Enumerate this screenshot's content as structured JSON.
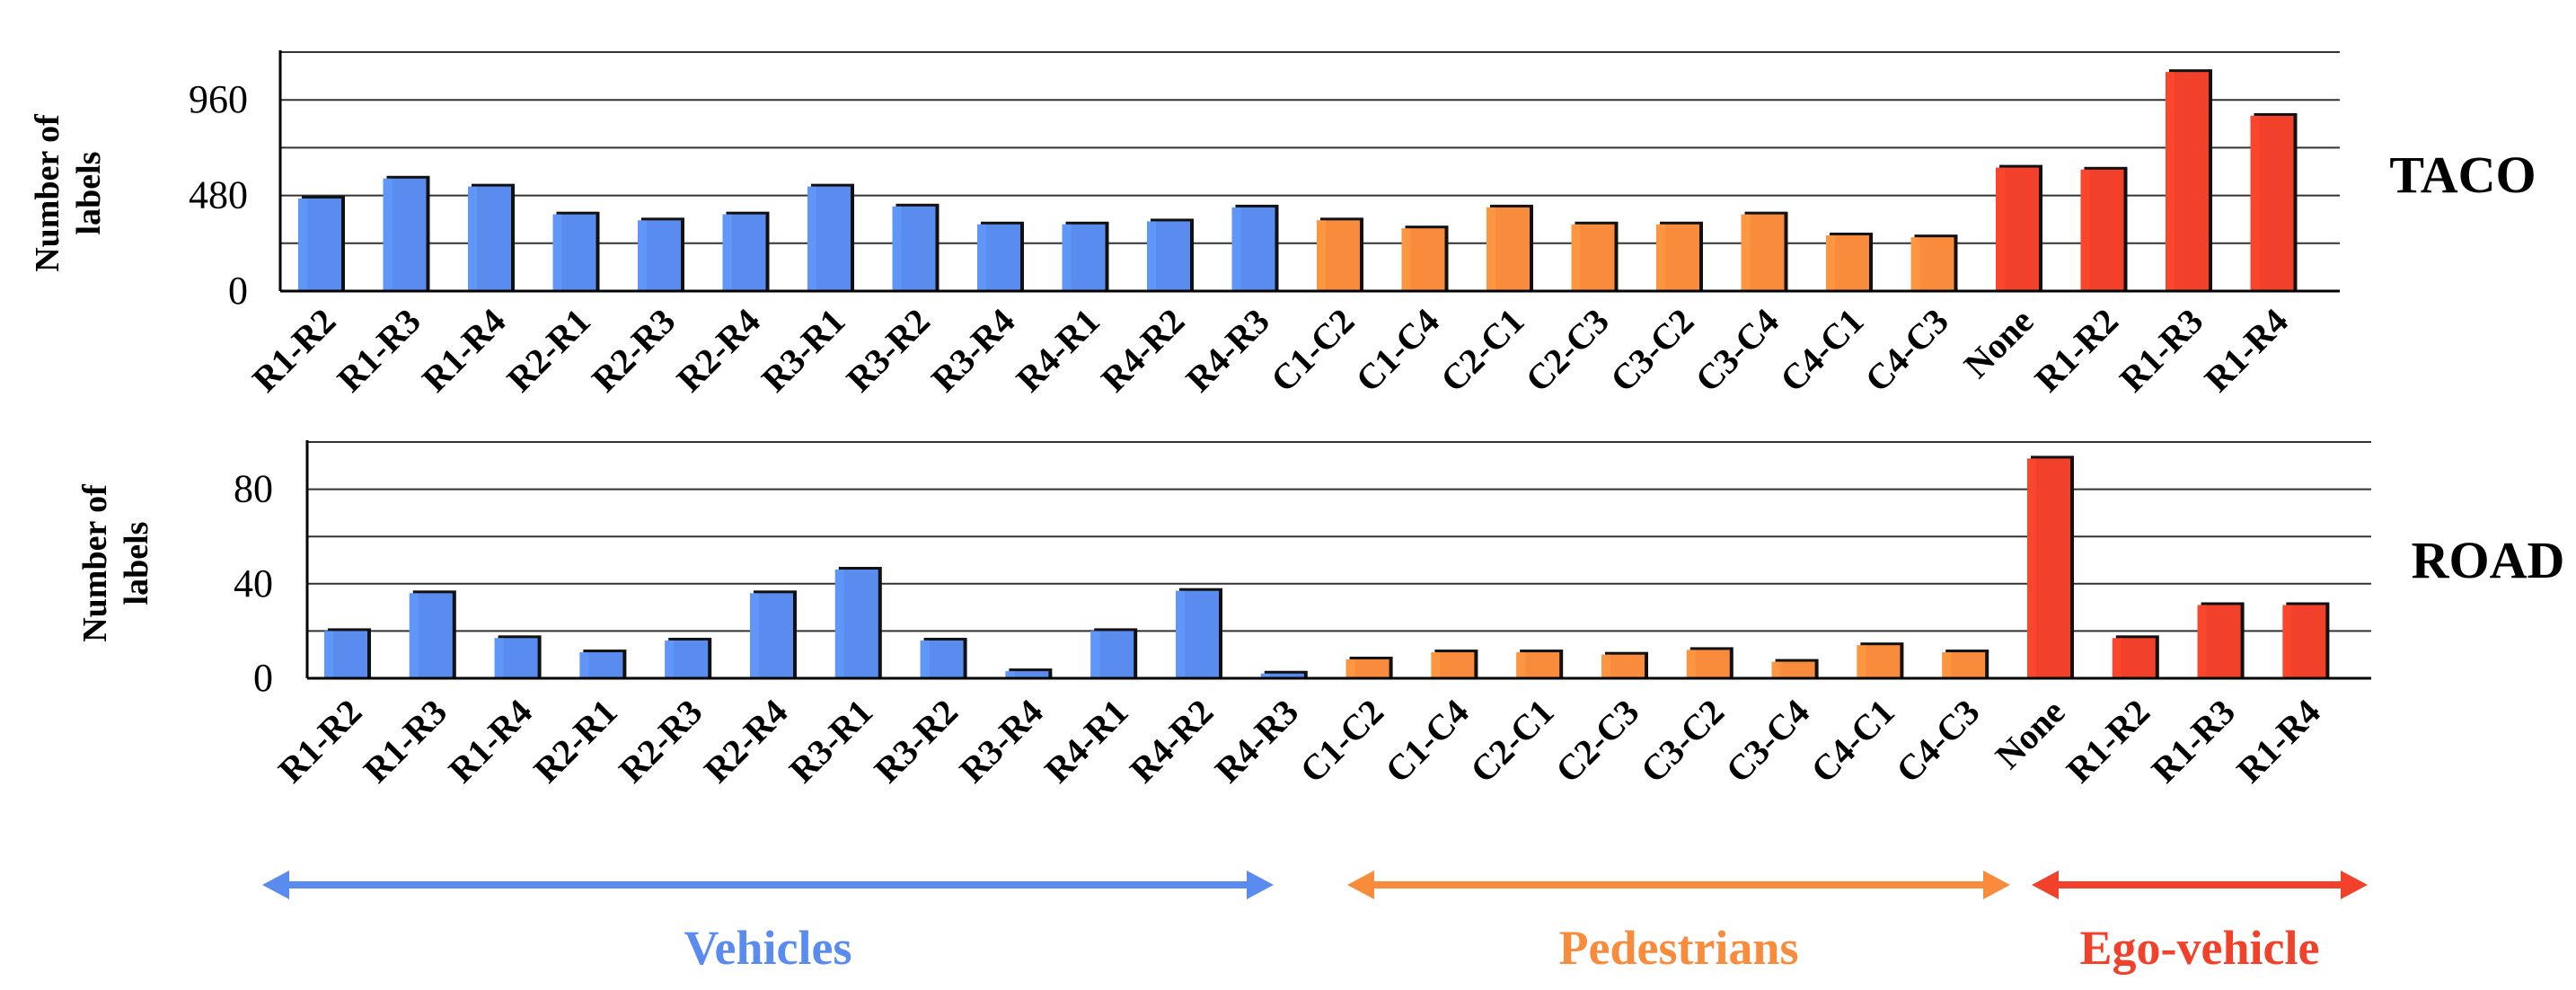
{
  "chart_data": [
    {
      "type": "bar",
      "side_label": "TACO",
      "ylabel": "Number of labels",
      "ylim": [
        0,
        1200
      ],
      "yticks": [
        0,
        480,
        960
      ],
      "categories": [
        "R1-R2",
        "R1-R3",
        "R1-R4",
        "R2-R1",
        "R2-R3",
        "R2-R4",
        "R3-R1",
        "R3-R2",
        "R3-R4",
        "R4-R1",
        "R4-R2",
        "R4-R3",
        "C1-C2",
        "C1-C4",
        "C2-C1",
        "C2-C3",
        "C3-C2",
        "C3-C4",
        "C4-C1",
        "C4-C3",
        "None",
        "R1-R2",
        "R1-R3",
        "R1-R4"
      ],
      "values": [
        465,
        565,
        525,
        385,
        355,
        385,
        525,
        425,
        335,
        335,
        350,
        420,
        355,
        315,
        420,
        335,
        335,
        385,
        280,
        270,
        620,
        610,
        1100,
        880
      ],
      "groups": [
        "Vehicles",
        "Vehicles",
        "Vehicles",
        "Vehicles",
        "Vehicles",
        "Vehicles",
        "Vehicles",
        "Vehicles",
        "Vehicles",
        "Vehicles",
        "Vehicles",
        "Vehicles",
        "Pedestrians",
        "Pedestrians",
        "Pedestrians",
        "Pedestrians",
        "Pedestrians",
        "Pedestrians",
        "Pedestrians",
        "Pedestrians",
        "Ego-vehicle",
        "Ego-vehicle",
        "Ego-vehicle",
        "Ego-vehicle"
      ],
      "grid": true
    },
    {
      "type": "bar",
      "side_label": "ROAD",
      "ylabel": "Number of labels",
      "ylim": [
        0,
        100
      ],
      "yticks": [
        0,
        40,
        80
      ],
      "categories": [
        "R1-R2",
        "R1-R3",
        "R1-R4",
        "R2-R1",
        "R2-R3",
        "R2-R4",
        "R3-R1",
        "R3-R2",
        "R3-R4",
        "R4-R1",
        "R4-R2",
        "R4-R3",
        "C1-C2",
        "C1-C4",
        "C2-C1",
        "C2-C3",
        "C3-C2",
        "C3-C4",
        "C4-C1",
        "C4-C3",
        "None",
        "R1-R2",
        "R1-R3",
        "R1-R4"
      ],
      "values": [
        20,
        36,
        17,
        11,
        16,
        36,
        46,
        16,
        3,
        20,
        37,
        2,
        8,
        11,
        11,
        10,
        12,
        7,
        14,
        11,
        93,
        17,
        31,
        31
      ],
      "groups": [
        "Vehicles",
        "Vehicles",
        "Vehicles",
        "Vehicles",
        "Vehicles",
        "Vehicles",
        "Vehicles",
        "Vehicles",
        "Vehicles",
        "Vehicles",
        "Vehicles",
        "Vehicles",
        "Pedestrians",
        "Pedestrians",
        "Pedestrians",
        "Pedestrians",
        "Pedestrians",
        "Pedestrians",
        "Pedestrians",
        "Pedestrians",
        "Ego-vehicle",
        "Ego-vehicle",
        "Ego-vehicle",
        "Ego-vehicle"
      ],
      "grid": true
    }
  ],
  "legend": {
    "groups": [
      {
        "name": "Vehicles",
        "color": "#5a8cf0"
      },
      {
        "name": "Pedestrians",
        "color": "#f98c3c"
      },
      {
        "name": "Ego-vehicle",
        "color": "#f2412a"
      }
    ]
  },
  "colors": {
    "Vehicles": "#5a8cf0",
    "Pedestrians": "#f98c3c",
    "Ego-vehicle": "#f2412a",
    "axis": "#000000",
    "grid": "#333333"
  }
}
